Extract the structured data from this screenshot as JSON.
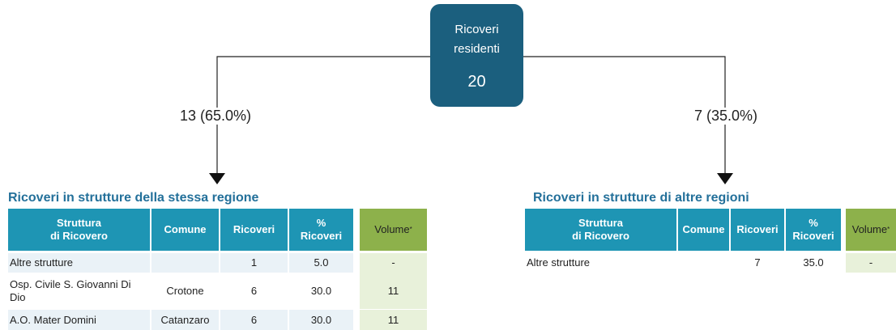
{
  "root": {
    "label": "Ricoveri\nresidenti",
    "value": "20"
  },
  "branches": [
    {
      "label": "13 (65.0%)",
      "table": {
        "title": "Ricoveri in strutture della stessa regione",
        "headers": [
          {
            "text": "Struttura\ndi Ricovero"
          },
          {
            "text": "Comune"
          },
          {
            "text": "Ricoveri"
          },
          {
            "text": "%\nRicoveri"
          },
          {
            "text": "Volume",
            "sup": "*"
          }
        ],
        "rows": [
          [
            "Altre strutture",
            null,
            "1",
            "5.0",
            "-"
          ],
          [
            "Osp. Civile S. Giovanni Di Dio",
            "Crotone",
            "6",
            "30.0",
            "11"
          ],
          [
            "A.O. Mater Domini",
            "Catanzaro",
            "6",
            "30.0",
            "11"
          ]
        ]
      }
    },
    {
      "label": "7 (35.0%)",
      "table": {
        "title": "Ricoveri in strutture di altre regioni",
        "headers": [
          {
            "text": "Struttura\ndi Ricovero"
          },
          {
            "text": "Comune"
          },
          {
            "text": "Ricoveri"
          },
          {
            "text": "%\nRicoveri"
          },
          {
            "text": "Volume",
            "sup": "*"
          }
        ],
        "rows": [
          [
            "Altre strutture",
            null,
            "7",
            "35.0",
            "-"
          ]
        ]
      }
    }
  ]
}
